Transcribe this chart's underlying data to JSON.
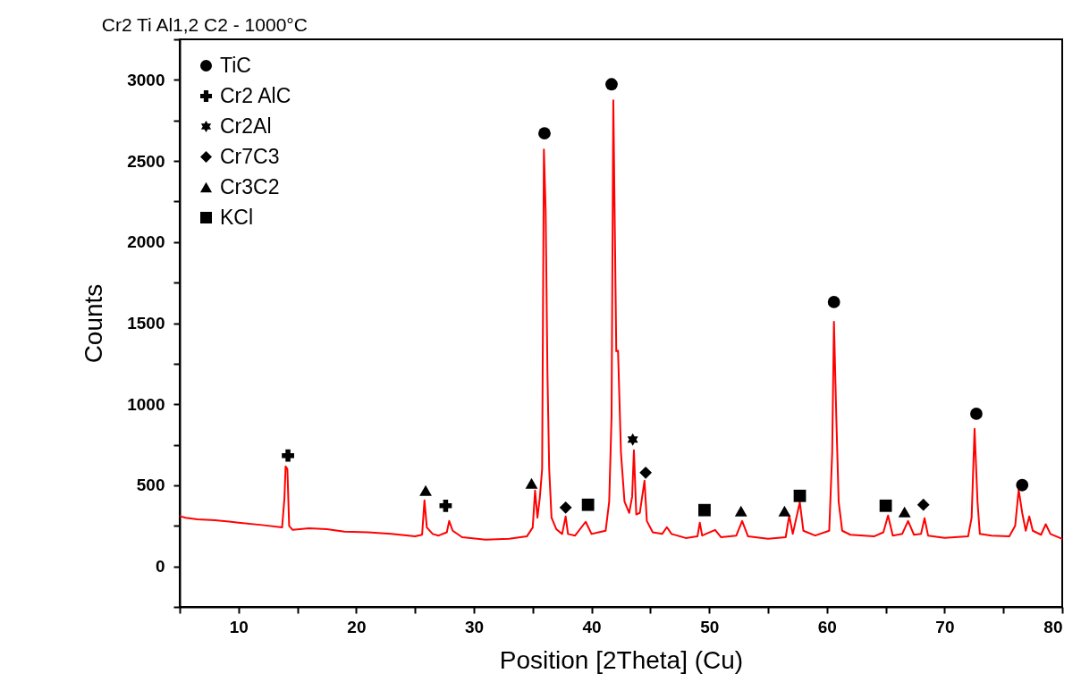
{
  "chart_data": {
    "type": "line",
    "title": "Cr2 Ti Al1,2 C2 - 1000°C",
    "xlabel": "Position [2Theta] (Cu)",
    "ylabel": "Counts",
    "xlim": [
      5,
      80
    ],
    "ylim": [
      -250,
      3250
    ],
    "xticks": [
      {
        "value": 5,
        "label": null
      },
      10,
      {
        "value": 15,
        "label": null
      },
      20,
      {
        "value": 25,
        "label": null
      },
      30,
      {
        "value": 35,
        "label": null
      },
      40,
      {
        "value": 45,
        "label": null
      },
      50,
      {
        "value": 55,
        "label": null
      },
      60,
      {
        "value": 65,
        "label": null
      },
      70,
      {
        "value": 75,
        "label": null
      },
      80
    ],
    "yticks": [
      {
        "value": -250,
        "label": null
      },
      0,
      {
        "value": 250,
        "label": null
      },
      500,
      {
        "value": 750,
        "label": null
      },
      1000,
      {
        "value": 1250,
        "label": null
      },
      1500,
      {
        "value": 1750,
        "label": null
      },
      2000,
      {
        "value": 2250,
        "label": null
      },
      2500,
      {
        "value": 2750,
        "label": null
      },
      3000,
      {
        "value": 3250,
        "label": null
      }
    ],
    "legend": "top left",
    "series": [
      {
        "color": "#ff0000",
        "x": [
          5,
          5.5,
          6.5,
          8,
          10,
          12,
          13.7,
          13.9,
          14,
          14.15,
          14.3,
          14.6,
          16,
          17.5,
          19,
          21,
          23,
          25,
          25.6,
          25.8,
          26,
          26.5,
          27,
          27.7,
          27.9,
          28.2,
          29,
          31,
          33,
          34.5,
          35,
          35.2,
          35.4,
          35.6,
          35.8,
          35.95,
          36.1,
          36.25,
          36.4,
          36.6,
          37,
          37.5,
          37.8,
          38,
          38.6,
          39.5,
          40,
          40.6,
          41.2,
          41.5,
          41.7,
          41.85,
          42.1,
          42.25,
          42.5,
          42.8,
          43.2,
          43.45,
          43.6,
          43.8,
          44.1,
          44.5,
          44.7,
          45.2,
          46,
          46.4,
          46.8,
          48,
          49,
          49.2,
          49.4,
          50.5,
          51,
          52.3,
          52.8,
          53.3,
          55,
          56.5,
          56.8,
          57.1,
          57.7,
          58,
          59,
          60.2,
          60.45,
          60.6,
          60.8,
          61,
          61.3,
          62,
          64,
          64.8,
          65.2,
          65.6,
          66.4,
          66.9,
          67.4,
          68,
          68.3,
          68.6,
          70,
          72,
          72.3,
          72.55,
          72.8,
          73,
          74,
          75.5,
          76,
          76.3,
          76.6,
          76.9,
          77.2,
          77.5,
          78.2,
          78.6,
          79,
          80
        ],
        "values": [
          310,
          300,
          290,
          285,
          270,
          255,
          240,
          420,
          617,
          600,
          250,
          225,
          235,
          230,
          215,
          210,
          200,
          185,
          195,
          407,
          240,
          200,
          190,
          210,
          280,
          220,
          180,
          165,
          170,
          185,
          240,
          468,
          300,
          420,
          600,
          2570,
          2190,
          1200,
          600,
          300,
          230,
          200,
          308,
          200,
          190,
          275,
          200,
          210,
          220,
          400,
          925,
          2874,
          1327,
          1330,
          700,
          400,
          330,
          430,
          716,
          320,
          330,
          528,
          280,
          210,
          200,
          242,
          200,
          175,
          185,
          270,
          190,
          225,
          180,
          190,
          280,
          185,
          170,
          180,
          314,
          200,
          396,
          220,
          190,
          220,
          700,
          1508,
          920,
          400,
          220,
          195,
          185,
          210,
          314,
          190,
          200,
          280,
          195,
          200,
          297,
          190,
          176,
          185,
          300,
          848,
          400,
          200,
          190,
          185,
          250,
          473,
          330,
          220,
          308,
          220,
          195,
          260,
          200,
          170
        ]
      },
      {
        "type": "scatter",
        "name": "TiC",
        "color": "#000000",
        "marker": "circle",
        "x": [
          36,
          41.7,
          60.6,
          72.7,
          76.6
        ],
        "values": [
          2670,
          2973,
          1630,
          941,
          501
        ]
      },
      {
        "type": "scatter",
        "name": "Cr2 AlC",
        "color": "#000000",
        "marker": "cross",
        "x": [
          14.2,
          27.6
        ],
        "values": [
          683,
          374
        ]
      },
      {
        "type": "scatter",
        "name": "Cr2Al",
        "color": "#000000",
        "marker": "star",
        "x": [
          43.5
        ],
        "values": [
          782
        ]
      },
      {
        "type": "scatter",
        "name": "Cr7C3",
        "color": "#000000",
        "marker": "diamond",
        "x": [
          37.8,
          44.6,
          68.2
        ],
        "values": [
          363,
          578,
          380
        ]
      },
      {
        "type": "scatter",
        "name": "Cr3C2",
        "color": "#000000",
        "marker": "triangle",
        "x": [
          25.9,
          34.9,
          52.7,
          56.4,
          66.6
        ],
        "values": [
          468,
          512,
          341,
          341,
          336
        ]
      },
      {
        "type": "scatter",
        "name": "KCl",
        "color": "#000000",
        "marker": "square",
        "x": [
          39.7,
          49.6,
          57.7,
          65
        ],
        "values": [
          380,
          347,
          435,
          374
        ]
      }
    ]
  }
}
